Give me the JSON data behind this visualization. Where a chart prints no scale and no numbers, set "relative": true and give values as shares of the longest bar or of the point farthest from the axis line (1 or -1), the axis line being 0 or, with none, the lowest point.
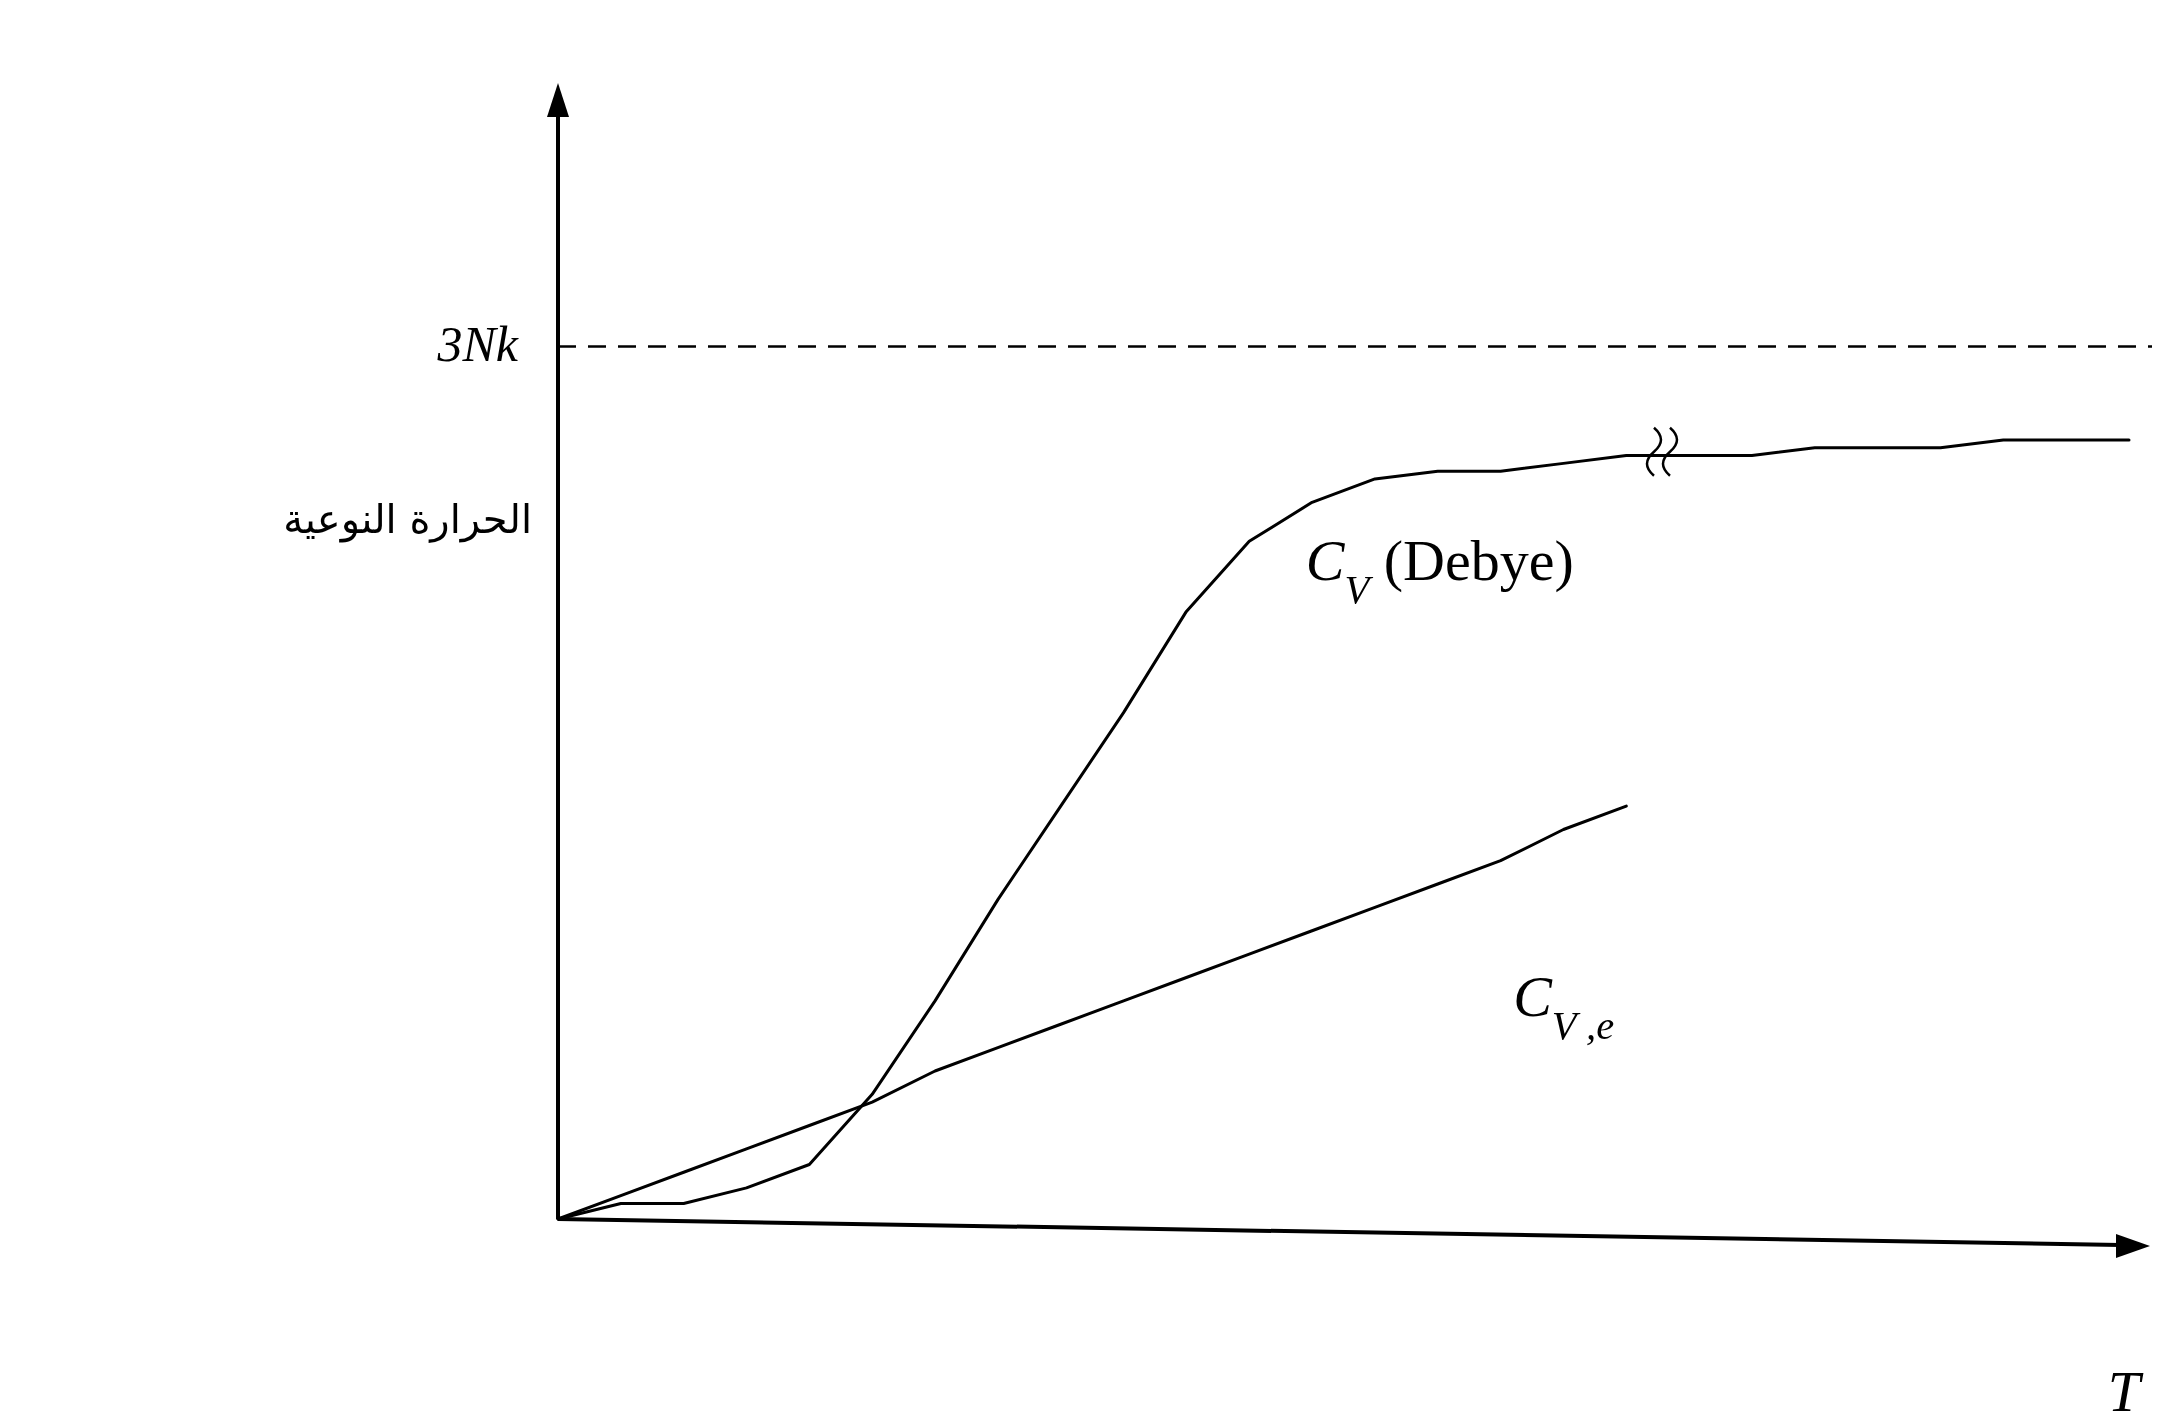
{
  "chart_data": {
    "type": "line",
    "relative": true,
    "xlabel": "T",
    "ylabel": "الحرارة النوعية",
    "categories": [
      null,
      null,
      null,
      null,
      null,
      null,
      null,
      null,
      null,
      null,
      null,
      null,
      null,
      null,
      null,
      null,
      null,
      null,
      null,
      null,
      null,
      null,
      null,
      null,
      null,
      null
    ],
    "series": [
      {
        "name": "C$_{V}$ (Debye)",
        "color": "#000000",
        "values": [
          0,
          0.02,
          0.02,
          0.04,
          0.07,
          0.16,
          0.28,
          0.41,
          0.53,
          0.65,
          0.78,
          0.87,
          0.92,
          0.95,
          0.96,
          0.96,
          0.97,
          0.98,
          0.98,
          0.98,
          0.99,
          0.99,
          0.99,
          1.0,
          1.0,
          1.0
        ]
      },
      {
        "name": "C$_{V ,e}$",
        "color": "#000000",
        "values": [
          0,
          0.03,
          0.06,
          0.09,
          0.12,
          0.15,
          0.19,
          0.22,
          0.25,
          0.28,
          0.31,
          0.34,
          0.37,
          0.4,
          0.43,
          0.46,
          0.5,
          0.53,
          null,
          null,
          null,
          null,
          null,
          null,
          null,
          null
        ]
      }
    ],
    "ref_lines": [
      {
        "axis": "y",
        "value": 1.12,
        "label": "3Nk",
        "line_style": "dashed",
        "color": "#000000"
      }
    ],
    "grid": false,
    "legend": false,
    "marker": "none",
    "line_style": "solid"
  }
}
